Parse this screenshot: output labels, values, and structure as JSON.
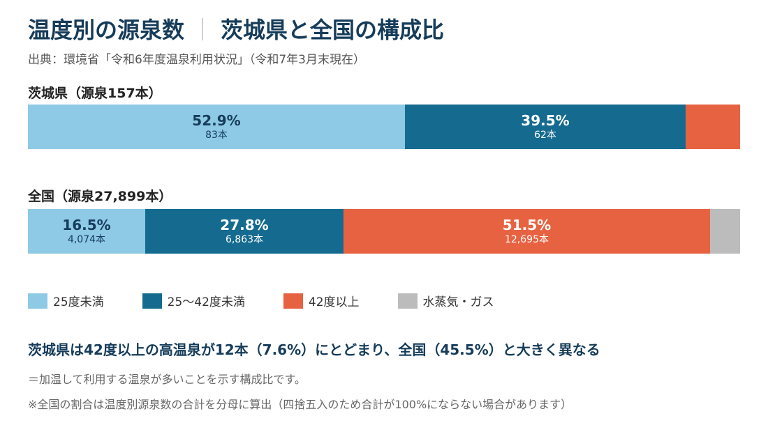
{
  "title_left": "温度別の源泉数",
  "title_sep": "｜",
  "title_right": "茨城県と全国の構成比",
  "source": "出典：環境省「令和6年度温泉利用状況」（令和7年3月末現在）",
  "colors": {
    "below25": "#8ecae6",
    "range25_42": "#156b8f",
    "over42": "#e76241",
    "steam_gas": "#bcbcbc",
    "text_dark": "#163c5a",
    "text_light": "#ffffff"
  },
  "chart_data": {
    "type": "bar",
    "orientation": "horizontal-stacked-100",
    "categories": [
      "25度未満",
      "25〜42度未満",
      "42度以上",
      "水蒸気・ガス"
    ],
    "bars": [
      {
        "label": "茨城県（源泉157本）",
        "segments": [
          {
            "category": "25度未満",
            "percent": 52.9,
            "percent_label": "52.9%",
            "count_label": "83本"
          },
          {
            "category": "25〜42度未満",
            "percent": 39.5,
            "percent_label": "39.5%",
            "count_label": "62本"
          },
          {
            "category": "42度以上",
            "percent": 7.6,
            "percent_label": "",
            "count_label": ""
          },
          {
            "category": "水蒸気・ガス",
            "percent": 0,
            "percent_label": "",
            "count_label": ""
          }
        ]
      },
      {
        "label": "全国（源泉27,899本）",
        "segments": [
          {
            "category": "25度未満",
            "percent": 16.5,
            "percent_label": "16.5%",
            "count_label": "4,074本"
          },
          {
            "category": "25〜42度未満",
            "percent": 27.8,
            "percent_label": "27.8%",
            "count_label": "6,863本"
          },
          {
            "category": "42度以上",
            "percent": 51.5,
            "percent_label": "51.5%",
            "count_label": "12,695本"
          },
          {
            "category": "水蒸気・ガス",
            "percent": 4.2,
            "percent_label": "",
            "count_label": ""
          }
        ]
      }
    ],
    "legend": [
      {
        "label": "25度未満",
        "color": "#8ecae6"
      },
      {
        "label": "25〜42度未満",
        "color": "#156b8f"
      },
      {
        "label": "42度以上",
        "color": "#e76241"
      },
      {
        "label": "水蒸気・ガス",
        "color": "#bcbcbc"
      }
    ],
    "legend_position": "bottom-left"
  },
  "conclusion": "茨城県は42度以上の高温泉が12本（7.6%）にとどまり、全国（45.5%）と大きく異なる",
  "note1": "＝加温して利用する温泉が多いことを示す構成比です。",
  "note2": "※全国の割合は温度別源泉数の合計を分母に算出（四捨五入のため合計が100%にならない場合があります）"
}
